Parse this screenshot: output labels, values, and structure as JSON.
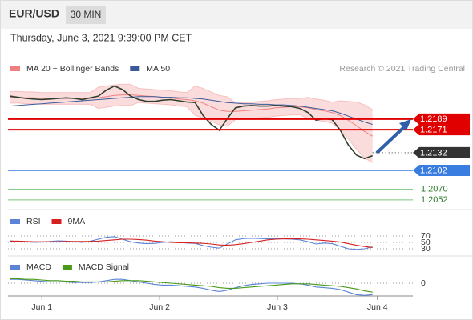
{
  "chart_data": [
    {
      "type": "candle-line",
      "title": "EUR/USD",
      "subtitle": "30 MIN",
      "date": "Thursday, June 3, 2021 9:39:00 PM CET",
      "credit": "Research © 2021 Trading Central",
      "x": [
        0,
        1,
        2,
        3,
        4,
        5,
        6,
        7,
        8,
        9,
        10,
        11,
        12,
        13,
        14,
        15,
        16,
        17,
        18,
        19,
        20,
        21,
        22,
        23,
        24,
        25,
        26,
        27,
        28,
        29,
        30,
        31,
        32,
        33,
        34,
        35,
        36,
        37,
        38,
        39,
        40,
        41,
        42,
        43,
        44,
        45
      ],
      "price": {
        "color": "#2f3f2f",
        "values": [
          1.2228,
          1.2226,
          1.2224,
          1.2223,
          1.2222,
          1.2223,
          1.2224,
          1.2225,
          1.2224,
          1.2222,
          1.2225,
          1.2228,
          1.2238,
          1.2245,
          1.2239,
          1.2228,
          1.2222,
          1.2219,
          1.2219,
          1.2221,
          1.2222,
          1.222,
          1.2218,
          1.2217,
          1.2195,
          1.218,
          1.217,
          1.219,
          1.2208,
          1.2211,
          1.2212,
          1.2211,
          1.2211,
          1.2212,
          1.2211,
          1.221,
          1.2207,
          1.22,
          1.2187,
          1.219,
          1.2188,
          1.217,
          1.2145,
          1.2128,
          1.2122,
          1.2127
        ]
      },
      "series": [
        {
          "name": "MA 20 + Bollinger Bands",
          "color": "#f08080",
          "values": [
            1.2226,
            1.2226,
            1.2225,
            1.2225,
            1.2224,
            1.2224,
            1.2224,
            1.2224,
            1.2224,
            1.2224,
            1.2224,
            1.2225,
            1.2227,
            1.2229,
            1.223,
            1.223,
            1.2229,
            1.2228,
            1.2227,
            1.2226,
            1.2225,
            1.2223,
            1.2222,
            1.222,
            1.2216,
            1.221,
            1.2204,
            1.2202,
            1.2202,
            1.2203,
            1.2204,
            1.2205,
            1.2206,
            1.2208,
            1.2209,
            1.221,
            1.221,
            1.2208,
            1.2205,
            1.2203,
            1.22,
            1.2195,
            1.2187,
            1.2178,
            1.2168,
            1.216
          ],
          "upper": [
            1.2236,
            1.2236,
            1.2235,
            1.2235,
            1.2234,
            1.2234,
            1.2234,
            1.2234,
            1.2234,
            1.2234,
            1.2234,
            1.2243,
            1.2245,
            1.2247,
            1.2248,
            1.2248,
            1.2241,
            1.224,
            1.2239,
            1.2238,
            1.2237,
            1.2235,
            1.2234,
            1.2245,
            1.2241,
            1.2235,
            1.2229,
            1.2227,
            1.2216,
            1.2217,
            1.2218,
            1.2219,
            1.222,
            1.2222,
            1.2223,
            1.2224,
            1.2224,
            1.2226,
            1.2223,
            1.2221,
            1.2218,
            1.222,
            1.2219,
            1.2218,
            1.2213,
            1.2205
          ],
          "lower": [
            1.2216,
            1.2216,
            1.2215,
            1.2215,
            1.2214,
            1.2214,
            1.2214,
            1.2214,
            1.2214,
            1.2214,
            1.2214,
            1.2207,
            1.2209,
            1.2211,
            1.2212,
            1.2212,
            1.2217,
            1.2216,
            1.2215,
            1.2214,
            1.2213,
            1.2211,
            1.221,
            1.2195,
            1.2191,
            1.2185,
            1.2179,
            1.2177,
            1.2188,
            1.2189,
            1.219,
            1.2191,
            1.2192,
            1.2194,
            1.2195,
            1.2196,
            1.2196,
            1.219,
            1.2187,
            1.2185,
            1.2182,
            1.217,
            1.2155,
            1.2138,
            1.2123,
            1.2115
          ]
        },
        {
          "name": "MA 50",
          "color": "#3a5a9a",
          "values": [
            1.2211,
            1.2212,
            1.2213,
            1.2214,
            1.2215,
            1.2216,
            1.2217,
            1.2218,
            1.2219,
            1.222,
            1.2221,
            1.2222,
            1.2223,
            1.2224,
            1.2225,
            1.2226,
            1.2227,
            1.2227,
            1.2227,
            1.2226,
            1.2226,
            1.2225,
            1.2225,
            1.2224,
            1.2223,
            1.2221,
            1.2219,
            1.2217,
            1.2216,
            1.2215,
            1.2215,
            1.2214,
            1.2214,
            1.2213,
            1.2213,
            1.2212,
            1.2211,
            1.2209,
            1.2207,
            1.2205,
            1.2203,
            1.2199,
            1.2194,
            1.2189,
            1.2184,
            1.218
          ]
        }
      ],
      "levels": [
        {
          "value": 1.2189,
          "color": "#e00000"
        },
        {
          "value": 1.2171,
          "color": "#e00000"
        },
        {
          "value": 1.2132,
          "color": "#333333"
        },
        {
          "value": 1.2102,
          "color": "#3a7de0"
        },
        {
          "value": 1.207,
          "label": "1.2070",
          "color": "#7cc47c"
        },
        {
          "value": 1.2052,
          "color": "#7cc47c"
        }
      ],
      "xlim": [
        0,
        50
      ],
      "ylim": [
        1.2041,
        1.2262
      ]
    },
    {
      "type": "line",
      "series": [
        {
          "name": "RSI",
          "color": "#5b84d6",
          "values": [
            55,
            53,
            52,
            50,
            51,
            53,
            55,
            54,
            52,
            50,
            54,
            60,
            66,
            68,
            60,
            52,
            48,
            46,
            47,
            50,
            52,
            50,
            48,
            47,
            40,
            35,
            32,
            45,
            58,
            62,
            63,
            62,
            61,
            62,
            61,
            60,
            58,
            52,
            45,
            48,
            46,
            38,
            30,
            28,
            30,
            36
          ]
        },
        {
          "name": "9MA",
          "color": "#d62020",
          "values": [
            54,
            54,
            53,
            52,
            52,
            52,
            52,
            53,
            53,
            53,
            53,
            54,
            56,
            58,
            60,
            60,
            59,
            57,
            54,
            52,
            50,
            49,
            49,
            48,
            47,
            45,
            42,
            41,
            43,
            46,
            50,
            54,
            58,
            60,
            61,
            61,
            61,
            60,
            58,
            56,
            54,
            51,
            46,
            41,
            37,
            34
          ]
        }
      ],
      "xlim": [
        0,
        50
      ],
      "ylim": [
        10,
        90
      ],
      "yticks": [
        70,
        50,
        30
      ]
    },
    {
      "type": "line",
      "series": [
        {
          "name": "MACD",
          "color": "#5b84d6",
          "values": [
            0.0006,
            0.0006,
            0.0005,
            0.0004,
            0.0003,
            0.0002,
            0.0002,
            0.0002,
            0.0001,
            0.0001,
            0.0001,
            0.0002,
            0.0004,
            0.0006,
            0.0006,
            0.0004,
            0.0002,
            0,
            -0.0002,
            -0.0003,
            -0.0003,
            -0.0004,
            -0.0005,
            -0.0006,
            -0.0008,
            -0.0011,
            -0.0013,
            -0.0011,
            -0.0007,
            -0.0004,
            -0.0002,
            -0.0001,
            0,
            0,
            0,
            0,
            -0.0001,
            -0.0003,
            -0.0006,
            -0.0007,
            -0.0008,
            -0.001,
            -0.0014,
            -0.0018,
            -0.0019,
            -0.0018
          ]
        },
        {
          "name": "MACD Signal",
          "color": "#4a9a1a",
          "values": [
            0.0007,
            0.0007,
            0.0006,
            0.0006,
            0.0005,
            0.0004,
            0.0004,
            0.0003,
            0.0003,
            0.0002,
            0.0002,
            0.0002,
            0.0002,
            0.0003,
            0.0004,
            0.0004,
            0.0004,
            0.0003,
            0.0002,
            0.0001,
            0,
            -0.0001,
            -0.0002,
            -0.0003,
            -0.0004,
            -0.0005,
            -0.0007,
            -0.0008,
            -0.0008,
            -0.0007,
            -0.0006,
            -0.0005,
            -0.0004,
            -0.0003,
            -0.0002,
            -0.0001,
            -0.0001,
            -0.0001,
            -0.0002,
            -0.0003,
            -0.0004,
            -0.0005,
            -0.0007,
            -0.0009,
            -0.0012,
            -0.0014
          ]
        }
      ],
      "xlim": [
        0,
        50
      ],
      "ylim": [
        -0.002,
        0.002
      ],
      "yticks": [
        0
      ],
      "xticks": [
        {
          "value": 4,
          "label": "Jun 1"
        },
        {
          "value": 18.6,
          "label": "Jun 2"
        },
        {
          "value": 33.2,
          "label": "Jun 3"
        },
        {
          "value": 45.6,
          "label": "Jun 4"
        }
      ]
    }
  ]
}
